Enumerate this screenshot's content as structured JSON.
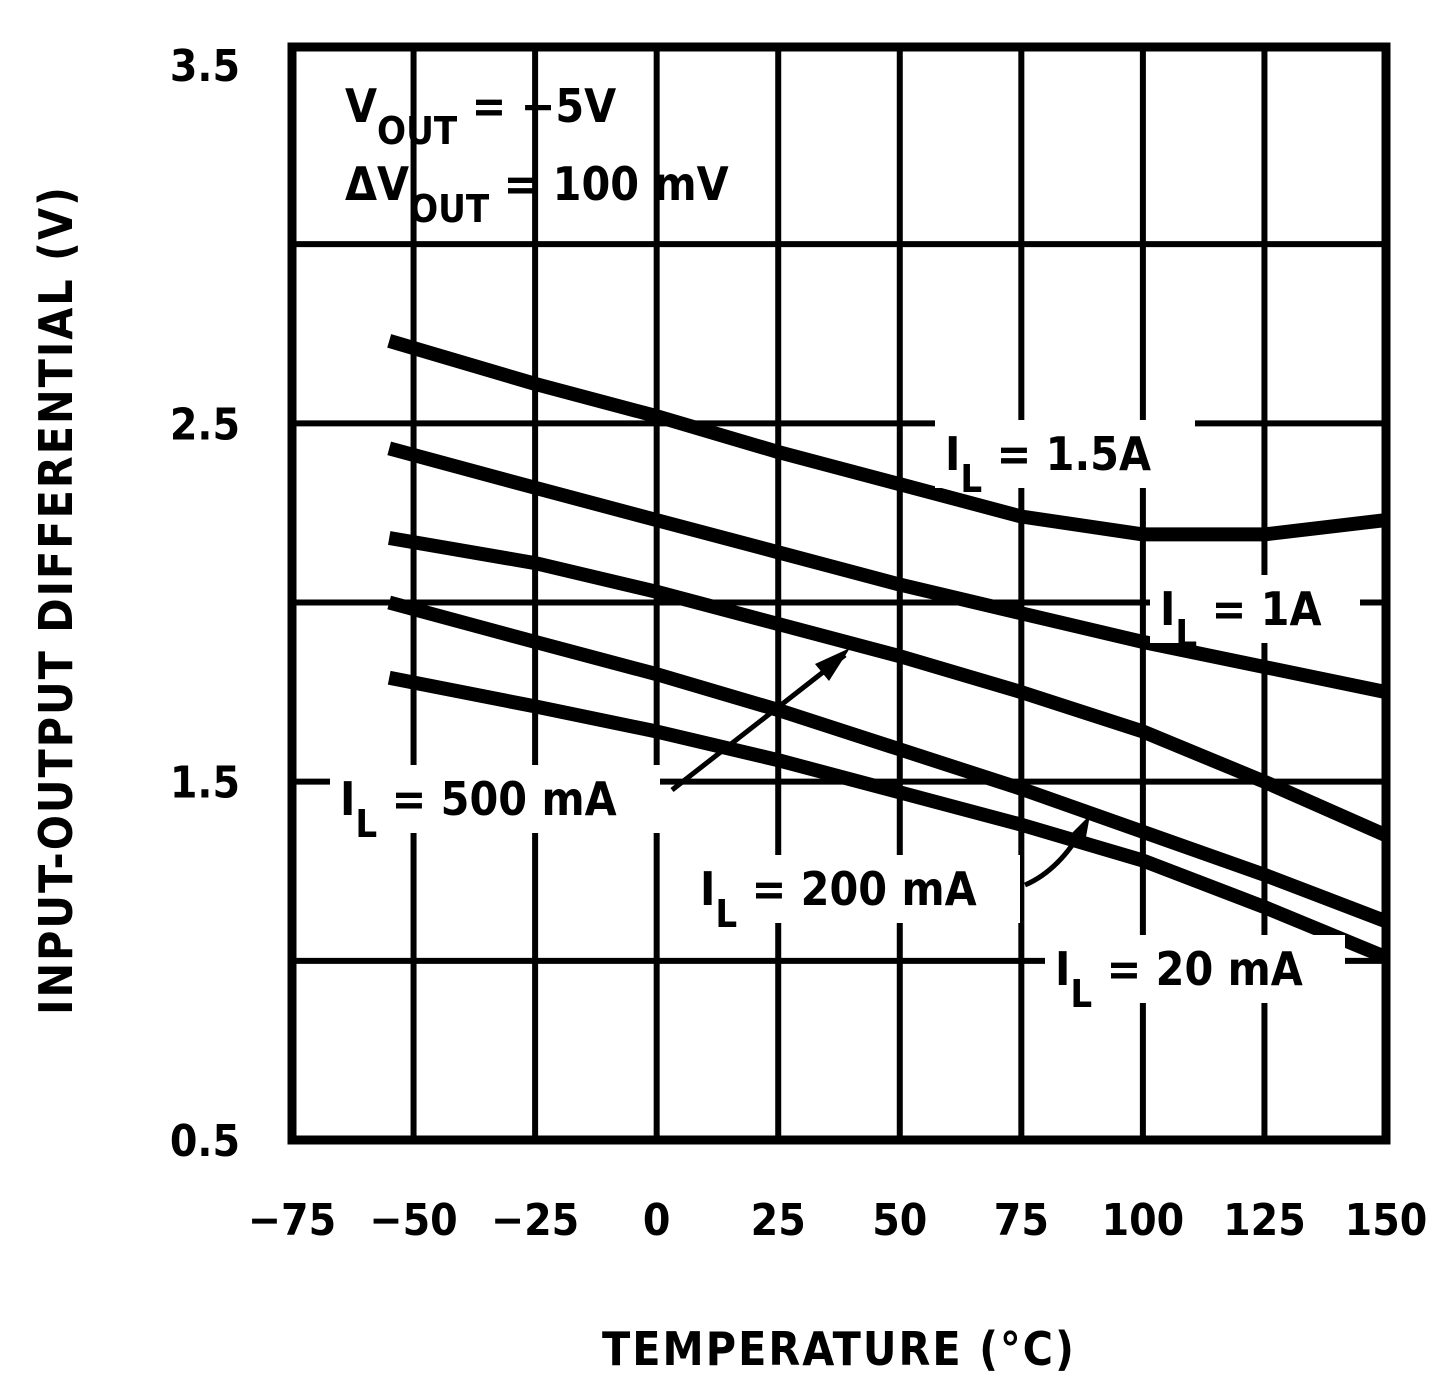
{
  "chart_data": {
    "type": "line",
    "title": "",
    "xlabel": "TEMPERATURE (°C)",
    "ylabel": "INPUT-OUTPUT DIFFERENTIAL (V)",
    "xlim": [
      -75,
      150
    ],
    "ylim": [
      0.5,
      3.5
    ],
    "grid": true,
    "x_ticks": [
      "−75",
      "−50",
      "−25",
      "0",
      "25",
      "50",
      "75",
      "100",
      "125",
      "150"
    ],
    "y_ticks": [
      "0.5",
      "1.5",
      "2.5",
      "3.5"
    ],
    "annotations": [
      {
        "main": "V",
        "sub": "OUT",
        "rest": " = −5V"
      },
      {
        "main": "ΔV",
        "sub": "OUT",
        "rest": " = 100 mV"
      }
    ],
    "series": [
      {
        "label": {
          "main": "I",
          "sub": "L",
          "rest": " = 1.5A"
        },
        "x": [
          -55,
          -25,
          0,
          25,
          50,
          75,
          100,
          125,
          150
        ],
        "y": [
          2.73,
          2.61,
          2.52,
          2.42,
          2.33,
          2.24,
          2.19,
          2.19,
          2.23
        ]
      },
      {
        "label": {
          "main": "I",
          "sub": "L",
          "rest": " = 1A"
        },
        "x": [
          -55,
          -25,
          0,
          25,
          50,
          75,
          100,
          125,
          150
        ],
        "y": [
          2.43,
          2.32,
          2.23,
          2.14,
          2.05,
          1.97,
          1.89,
          1.82,
          1.75
        ]
      },
      {
        "label": {
          "main": "I",
          "sub": "L",
          "rest": " = 500 mA"
        },
        "x": [
          -55,
          -25,
          0,
          25,
          50,
          75,
          100,
          125,
          150
        ],
        "y": [
          2.18,
          2.11,
          2.03,
          1.94,
          1.85,
          1.75,
          1.64,
          1.5,
          1.35
        ]
      },
      {
        "label": {
          "main": "I",
          "sub": "L",
          "rest": " = 200 mA"
        },
        "x": [
          -55,
          -25,
          0,
          25,
          50,
          75,
          100,
          125,
          150
        ],
        "y": [
          2.0,
          1.89,
          1.8,
          1.7,
          1.59,
          1.48,
          1.36,
          1.24,
          1.11
        ]
      },
      {
        "label": {
          "main": "I",
          "sub": "L",
          "rest": " = 20 mA"
        },
        "x": [
          -55,
          -25,
          0,
          25,
          50,
          75,
          100,
          125,
          150
        ],
        "y": [
          1.79,
          1.71,
          1.64,
          1.56,
          1.47,
          1.38,
          1.28,
          1.15,
          1.01
        ]
      }
    ]
  }
}
